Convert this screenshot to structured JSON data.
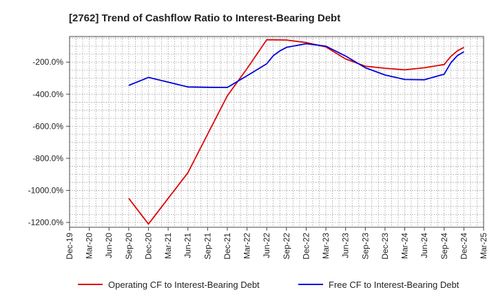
{
  "chart_data": {
    "type": "line",
    "title": "[2762]  Trend of Cashflow Ratio to Interest-Bearing Debt",
    "xlabel": "",
    "ylabel": "",
    "x_ticks": [
      "Dec-19",
      "Mar-20",
      "Jun-20",
      "Sep-20",
      "Dec-20",
      "Mar-21",
      "Jun-21",
      "Sep-21",
      "Dec-21",
      "Mar-22",
      "Jun-22",
      "Sep-22",
      "Dec-22",
      "Mar-23",
      "Jun-23",
      "Sep-23",
      "Dec-23",
      "Mar-24",
      "Jun-24",
      "Sep-24",
      "Dec-24",
      "Mar-25"
    ],
    "y_ticks": [
      "-200.0%",
      "-400.0%",
      "-600.0%",
      "-800.0%",
      "-1000.0%",
      "-1200.0%"
    ],
    "y_tick_values": [
      -200,
      -400,
      -600,
      -800,
      -1000,
      -1200
    ],
    "ylim": [
      -1230,
      -40
    ],
    "grid": true,
    "legend_position": "bottom",
    "series": [
      {
        "name": "Operating CF to Interest-Bearing Debt",
        "color": "#dd0000",
        "points": [
          [
            "Sep-20",
            -1050
          ],
          [
            "Dec-20",
            -1210
          ],
          [
            "Mar-21",
            -1050
          ],
          [
            "Jun-21",
            -890
          ],
          [
            "Sep-21",
            -650
          ],
          [
            "Dec-21",
            -410
          ],
          [
            "Mar-22",
            -240
          ],
          [
            "Jun-22",
            -60
          ],
          [
            "Sep-22",
            -62
          ],
          [
            "Dec-22",
            -78
          ],
          [
            "Mar-23",
            -105
          ],
          [
            "Jun-23",
            -180
          ],
          [
            "Sep-23",
            -225
          ],
          [
            "Dec-23",
            -238
          ],
          [
            "Mar-24",
            -248
          ],
          [
            "Jun-24",
            -235
          ],
          [
            "Sep-24",
            -215
          ],
          [
            "Oct-24",
            -165
          ],
          [
            "Nov-24",
            -130
          ],
          [
            "Dec-24",
            -108
          ]
        ]
      },
      {
        "name": "Free CF to Interest-Bearing Debt",
        "color": "#0000dd",
        "points": [
          [
            "Sep-20",
            -345
          ],
          [
            "Dec-20",
            -295
          ],
          [
            "Mar-21",
            -325
          ],
          [
            "Jun-21",
            -355
          ],
          [
            "Sep-21",
            -357
          ],
          [
            "Dec-21",
            -358
          ],
          [
            "Mar-22",
            -285
          ],
          [
            "Jun-22",
            -210
          ],
          [
            "Jul-22",
            -160
          ],
          [
            "Aug-22",
            -130
          ],
          [
            "Sep-22",
            -108
          ],
          [
            "Dec-22",
            -85
          ],
          [
            "Mar-23",
            -100
          ],
          [
            "Jun-23",
            -162
          ],
          [
            "Sep-23",
            -235
          ],
          [
            "Dec-23",
            -280
          ],
          [
            "Mar-24",
            -308
          ],
          [
            "Jun-24",
            -310
          ],
          [
            "Sep-24",
            -275
          ],
          [
            "Oct-24",
            -205
          ],
          [
            "Nov-24",
            -160
          ],
          [
            "Dec-24",
            -135
          ]
        ]
      }
    ]
  }
}
